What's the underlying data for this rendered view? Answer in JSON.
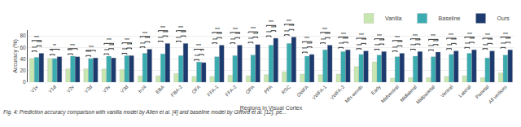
{
  "chart_data": {
    "type": "bar",
    "categories": [
      "V1v",
      "V1d",
      "V2v",
      "V2d",
      "V3v",
      "V3d",
      "hV4",
      "EBA",
      "FBA-2",
      "OFA",
      "FFA-1",
      "FFA-2",
      "OPA",
      "PPA",
      "RSC",
      "OWFA",
      "VWFA-1",
      "VWFA-2",
      "Mfs-words",
      "Early",
      "Midventral",
      "Midlateral",
      "Midparietal",
      "Ventral",
      "Lateral",
      "Parietal",
      "All vertices"
    ],
    "series": [
      {
        "name": "Vanilla",
        "color": "#c8e6b0",
        "values": [
          41,
          41,
          23,
          23,
          23,
          22,
          11,
          11,
          15,
          10,
          10,
          12,
          11,
          13,
          18,
          14,
          13,
          14,
          27,
          35,
          7,
          8,
          8,
          10,
          11,
          8,
          16
        ]
      },
      {
        "name": "Baseline",
        "color": "#3aacb0",
        "values": [
          43,
          41,
          45,
          41,
          45,
          46,
          50,
          49,
          46,
          35,
          44,
          46,
          47,
          64,
          67,
          45,
          56,
          53,
          48,
          47,
          44,
          45,
          44,
          48,
          50,
          42,
          47
        ]
      },
      {
        "name": "Ours",
        "color": "#1c3a6e",
        "values": [
          50,
          44,
          44,
          42,
          42,
          46,
          57,
          67,
          67,
          34,
          64,
          64,
          65,
          76,
          78,
          48,
          64,
          56,
          54,
          53,
          50,
          53,
          52,
          54,
          56,
          54,
          56
        ]
      }
    ],
    "xlabel": "Regions in Visual Cortex",
    "ylabel": "Accuracy (%)",
    "ylim": [
      0,
      90
    ],
    "yticks": [
      0,
      20,
      40,
      60,
      80
    ],
    "grid": true,
    "annotations": {
      "pairs": [
        [
          "Vanilla",
          "Baseline"
        ],
        [
          "Vanilla",
          "Ours"
        ],
        [
          "Baseline",
          "Ours"
        ]
      ],
      "texts": [
        [
          "***",
          "***",
          "***"
        ],
        [
          "*",
          "**",
          null
        ],
        [
          "***",
          "***",
          null
        ],
        [
          "***",
          "***",
          null
        ],
        [
          "***",
          "***",
          "***"
        ],
        [
          "***",
          "***",
          "***"
        ],
        [
          "***",
          "***",
          "***"
        ],
        [
          "***",
          "***",
          "***"
        ],
        [
          "***",
          "***",
          "***"
        ],
        [
          "***",
          "***",
          "*"
        ],
        [
          "***",
          "***",
          "***"
        ],
        [
          "***",
          "***",
          "***"
        ],
        [
          "***",
          "***",
          "***"
        ],
        [
          "***",
          "***",
          "***"
        ],
        [
          "***",
          "***",
          "***"
        ],
        [
          "***",
          "***",
          "***"
        ],
        [
          "***",
          "***",
          "***"
        ],
        [
          "***",
          "***",
          "***"
        ],
        [
          "***",
          "***",
          "***"
        ],
        [
          "***",
          "***",
          "***"
        ],
        [
          "***",
          "***",
          "***"
        ],
        [
          "***",
          "***",
          "***"
        ],
        [
          "***",
          "***",
          "***"
        ],
        [
          "***",
          "***",
          "***"
        ],
        [
          "***",
          "***",
          "***"
        ],
        [
          "***",
          "***",
          "***"
        ],
        [
          "***",
          "***",
          "***"
        ]
      ]
    },
    "caption": "Fig. 4: Prediction accuracy comparison with vanilla model by Allen et al. [4] and baseline model by Gifford et al. [12], pe..."
  }
}
